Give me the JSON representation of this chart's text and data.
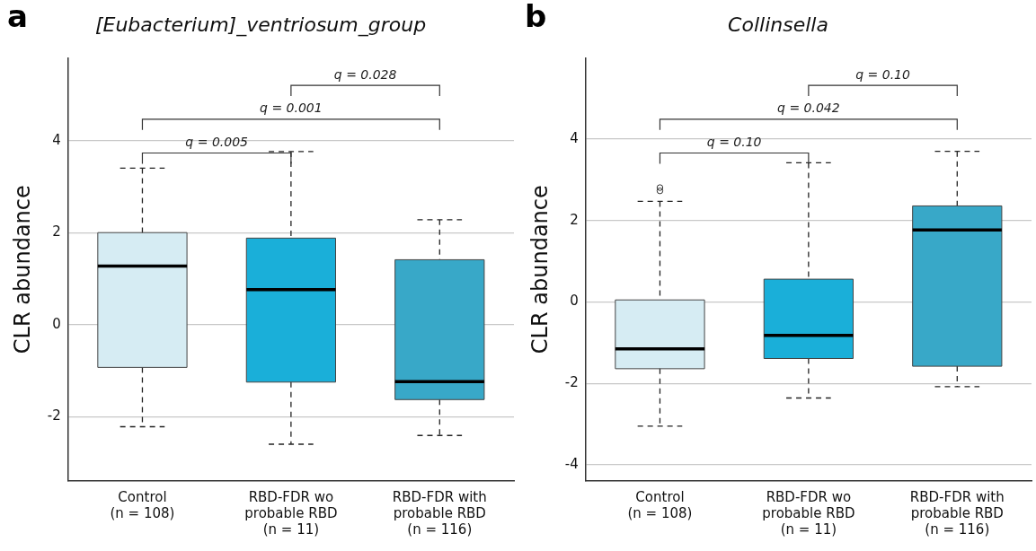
{
  "chart_data": [
    {
      "type": "box",
      "title": "[Eubacterium]_ventriosum_group",
      "ylabel": "CLR abundance",
      "categories": [
        "Control\n(n = 108)",
        "RBD-FDR wo\nprobable RBD\n(n = 11)",
        "RBD-FDR with\nprobable RBD\n(n = 116)"
      ],
      "colors": [
        "#d6ecf3",
        "#1aafd9",
        "#38a8c8"
      ],
      "boxes": [
        {
          "low": -2.22,
          "q1": -0.93,
          "median": 1.27,
          "q3": 2.0,
          "high": 3.4
        },
        {
          "low": -2.6,
          "q1": -1.25,
          "median": 0.76,
          "q3": 1.88,
          "high": 3.76
        },
        {
          "low": -2.41,
          "q1": -1.63,
          "median": -1.24,
          "q3": 1.41,
          "high": 2.28
        }
      ],
      "ylim": [
        -3.4,
        5.8
      ],
      "yticks": [
        -2,
        0,
        2,
        4
      ],
      "grid": "y",
      "legend": false,
      "annotations": [
        "a",
        "q = 0.028",
        "q = 0.001",
        "q = 0.005"
      ]
    },
    {
      "type": "box",
      "title": "Collinsella",
      "ylabel": "CLR abundance",
      "categories": [
        "Control\n(n = 108)",
        "RBD-FDR wo\nprobable RBD\n(n = 11)",
        "RBD-FDR with\nprobable RBD\n(n = 116)"
      ],
      "colors": [
        "#d6ecf3",
        "#1aafd9",
        "#38a8c8"
      ],
      "boxes": [
        {
          "low": -3.05,
          "q1": -1.64,
          "median": -1.15,
          "q3": 0.05,
          "high": 2.47,
          "outliers": [
            2.73,
            2.81
          ]
        },
        {
          "low": -2.36,
          "q1": -1.39,
          "median": -0.82,
          "q3": 0.56,
          "high": 3.42
        },
        {
          "low": -2.08,
          "q1": -1.58,
          "median": 1.77,
          "q3": 2.36,
          "high": 3.7
        }
      ],
      "ylim": [
        -4.4,
        6.0
      ],
      "yticks": [
        -4,
        -2,
        0,
        2,
        4
      ],
      "grid": "y",
      "legend": false,
      "annotations": [
        "b",
        "q = 0.10",
        "q = 0.042",
        "q = 0.10"
      ]
    }
  ]
}
